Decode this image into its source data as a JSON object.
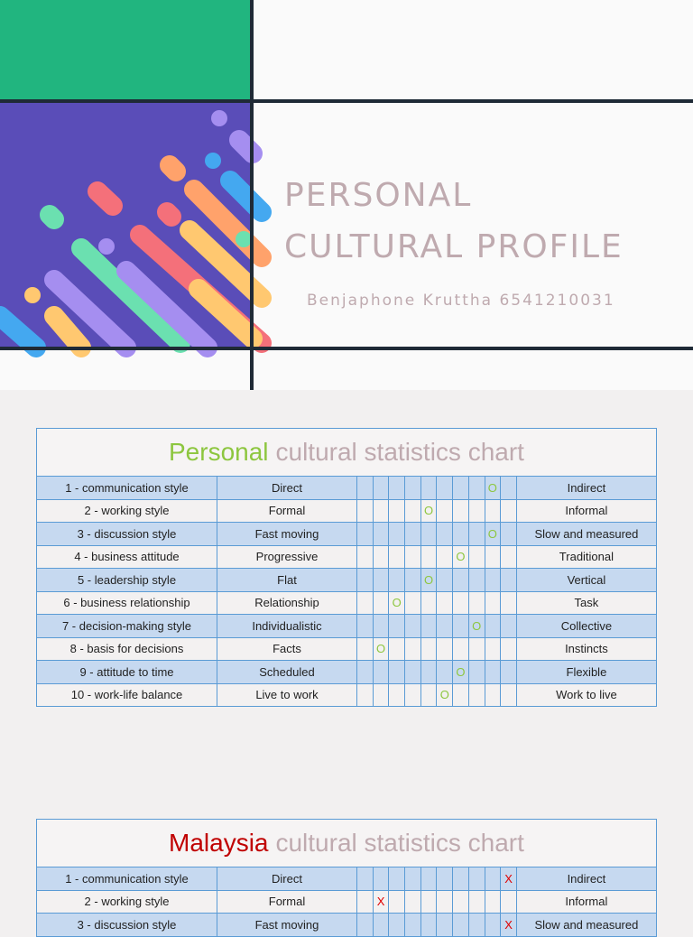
{
  "slide": {
    "title_line1": "PERSONAL",
    "title_line2": "CULTURAL PROFILE",
    "subtitle": "Benjaphone Kruttha 6541210031"
  },
  "tables": [
    {
      "title": {
        "highlight": "Personal",
        "rest": "cultural statistics chart"
      },
      "highlight_color": "#8dc63f",
      "mark_color": "#8dc63f",
      "rows": [
        {
          "label": "1 - communication style",
          "left": "Direct",
          "right": "Indirect",
          "mark": "O",
          "mark_index": 8
        },
        {
          "label": "2 - working style",
          "left": "Formal",
          "right": "Informal",
          "mark": "O",
          "mark_index": 4
        },
        {
          "label": "3 - discussion style",
          "left": "Fast moving",
          "right": "Slow and measured",
          "mark": "O",
          "mark_index": 8
        },
        {
          "label": "4 - business attitude",
          "left": "Progressive",
          "right": "Traditional",
          "mark": "O",
          "mark_index": 6
        },
        {
          "label": "5 - leadership style",
          "left": "Flat",
          "right": "Vertical",
          "mark": "O",
          "mark_index": 4
        },
        {
          "label": "6 - business relationship",
          "left": "Relationship",
          "right": "Task",
          "mark": "O",
          "mark_index": 2
        },
        {
          "label": "7 - decision-making style",
          "left": "Individualistic",
          "right": "Collective",
          "mark": "O",
          "mark_index": 7
        },
        {
          "label": "8 - basis for decisions",
          "left": "Facts",
          "right": "Instincts",
          "mark": "O",
          "mark_index": 1
        },
        {
          "label": "9 - attitude to time",
          "left": "Scheduled",
          "right": "Flexible",
          "mark": "O",
          "mark_index": 6
        },
        {
          "label": "10 - work-life balance",
          "left": "Live to work",
          "right": "Work to live",
          "mark": "O",
          "mark_index": 5
        }
      ]
    },
    {
      "title": {
        "highlight": "Malaysia",
        "rest": "cultural statistics chart"
      },
      "highlight_color": "#c00000",
      "mark_color": "#e00000",
      "rows": [
        {
          "label": "1 - communication style",
          "left": "Direct",
          "right": "Indirect",
          "mark": "X",
          "mark_index": 9
        },
        {
          "label": "2 - working style",
          "left": "Formal",
          "right": "Informal",
          "mark": "X",
          "mark_index": 1
        },
        {
          "label": "3 - discussion style",
          "left": "Fast moving",
          "right": "Slow and measured",
          "mark": "X",
          "mark_index": 9
        }
      ]
    }
  ]
}
